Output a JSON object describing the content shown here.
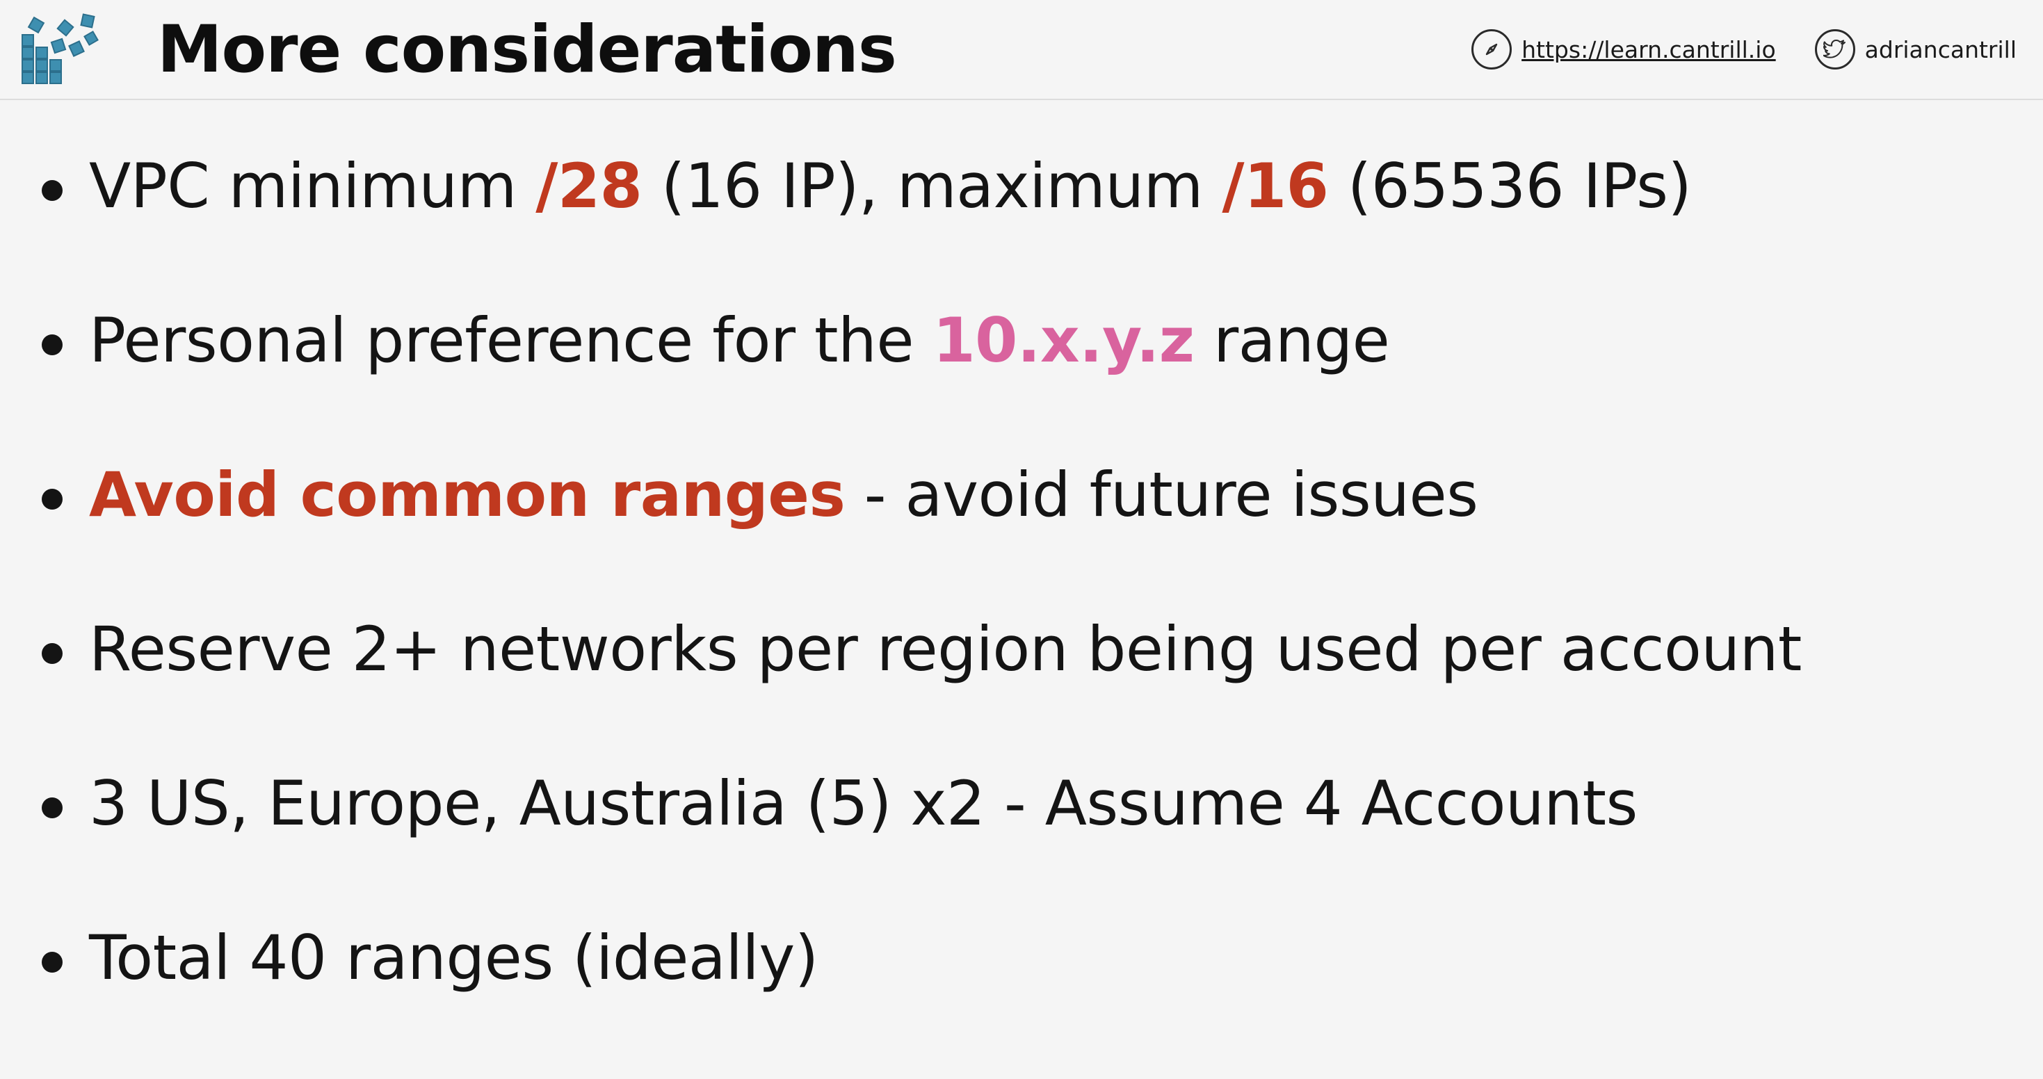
{
  "slide": {
    "title": "More considerations",
    "logo_icon": "cantrill-blocks-logo",
    "colors": {
      "highlight_red": "#c0391f",
      "highlight_pink": "#d9639e",
      "logo_teal": "#3e8fb0"
    }
  },
  "header": {
    "site_icon": "compass-icon",
    "site_url": "https://learn.cantrill.io",
    "twitter_icon": "twitter-bird-icon",
    "twitter_handle": "adriancantrill"
  },
  "bullets": [
    {
      "segments": [
        "VPC minimum ",
        "/28",
        " (16 IP), maximum ",
        "/16",
        " (65536 IPs)"
      ]
    },
    {
      "segments": [
        "Personal preference for the ",
        "10.x.y.z",
        " range"
      ]
    },
    {
      "segments": [
        "Avoid common ranges",
        " - avoid future issues"
      ]
    },
    {
      "segments": [
        "Reserve 2+ networks per region being used per account"
      ]
    },
    {
      "segments": [
        "3 US, Europe, Australia (5) x2 - Assume 4 Accounts"
      ]
    },
    {
      "segments": [
        "Total 40 ranges (ideally)"
      ]
    }
  ]
}
